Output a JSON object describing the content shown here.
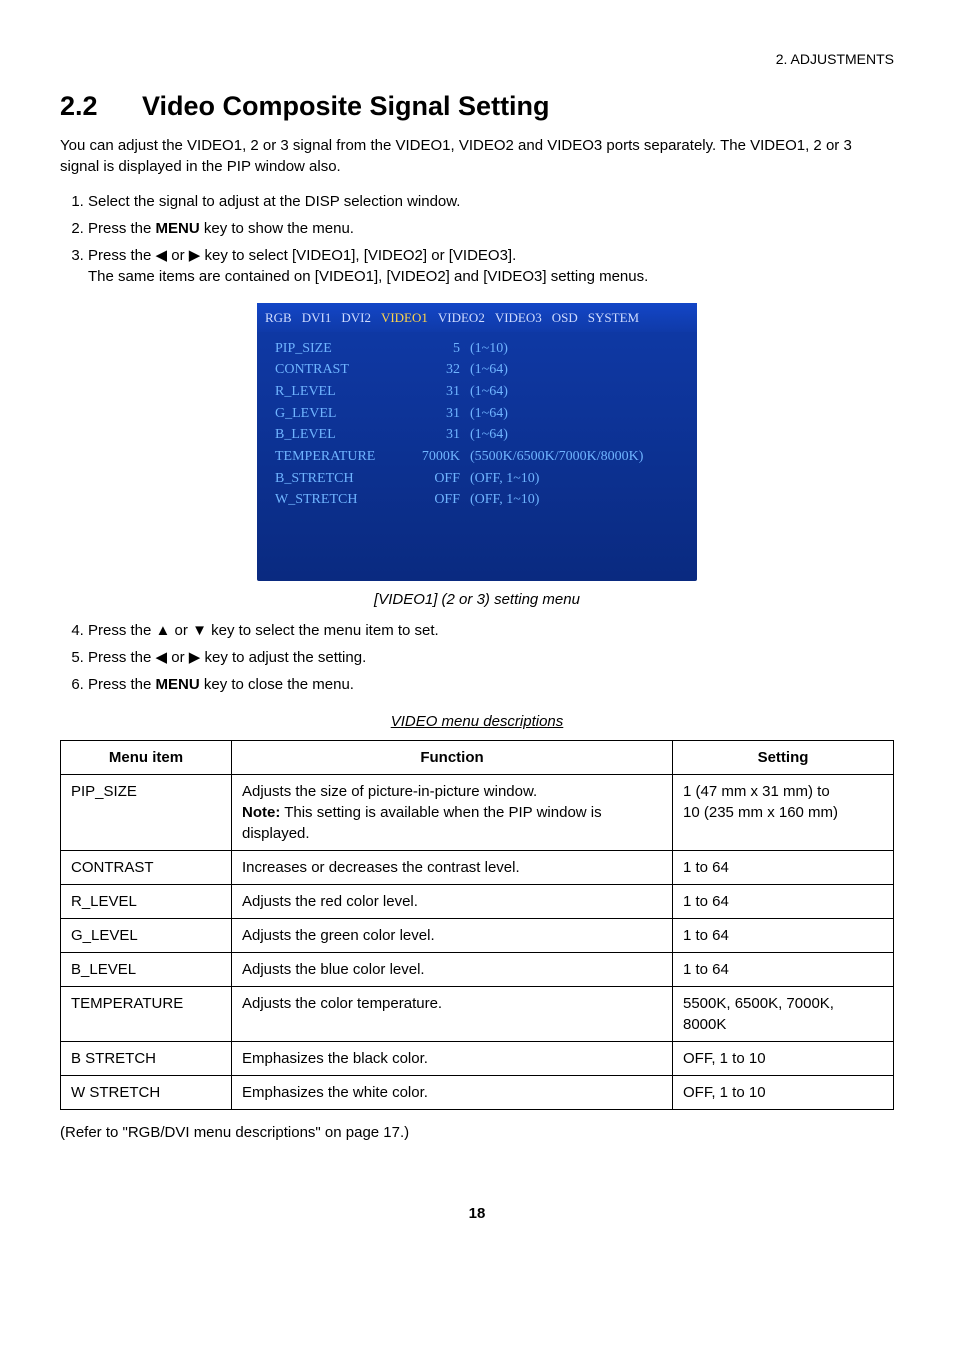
{
  "header": {
    "section_label": "2.  ADJUSTMENTS"
  },
  "title": {
    "number": "2.2",
    "text": "Video Composite Signal Setting"
  },
  "intro": "You can adjust the VIDEO1, 2 or 3 signal from the VIDEO1, VIDEO2 and VIDEO3 ports separately. The VIDEO1, 2 or 3 signal is displayed in the PIP window also.",
  "steps_a": [
    "Select the signal to adjust at the DISP selection window.",
    "Press the MENU key to show the menu.",
    "Press the ◀ or ▶ key to select [VIDEO1], [VIDEO2] or [VIDEO3]. The same items are contained on [VIDEO1], [VIDEO2] and [VIDEO3] setting menus."
  ],
  "menu_screen": {
    "tabs": [
      "RGB",
      "DVI1",
      "DVI2",
      "VIDEO1",
      "VIDEO2",
      "VIDEO3",
      "OSD",
      "SYSTEM"
    ],
    "active_tab_index": 3,
    "rows": [
      {
        "k": "PIP_SIZE",
        "v": "5",
        "r": "(1~10)"
      },
      {
        "k": "CONTRAST",
        "v": "32",
        "r": "(1~64)"
      },
      {
        "k": "R_LEVEL",
        "v": "31",
        "r": "(1~64)"
      },
      {
        "k": "G_LEVEL",
        "v": "31",
        "r": "(1~64)"
      },
      {
        "k": "B_LEVEL",
        "v": "31",
        "r": "(1~64)"
      },
      {
        "k": "TEMPERATURE",
        "v": "7000K",
        "r": "(5500K/6500K/7000K/8000K)"
      },
      {
        "k": "B_STRETCH",
        "v": "OFF",
        "r": "(OFF, 1~10)"
      },
      {
        "k": "W_STRETCH",
        "v": "OFF",
        "r": "(OFF, 1~10)"
      }
    ]
  },
  "caption": "[VIDEO1] (2 or 3) setting menu",
  "steps_b": [
    "Press the ▲ or ▼ key to select the menu item to set.",
    "Press the ◀ or ▶ key to adjust the setting.",
    "Press the MENU key to close the menu."
  ],
  "table_title": "VIDEO menu descriptions",
  "table": {
    "head": [
      "Menu item",
      "Function",
      "Setting"
    ],
    "rows": [
      {
        "m": "PIP_SIZE",
        "f": "Adjusts the size of picture-in-picture window. Note: This setting is available when the PIP window is displayed.",
        "note_bold": "Note:",
        "s": "1 (47 mm x 31 mm) to 10 (235 mm x 160 mm)"
      },
      {
        "m": "CONTRAST",
        "f": "Increases or decreases the contrast level.",
        "s": "1 to 64"
      },
      {
        "m": "R_LEVEL",
        "f": "Adjusts the red color level.",
        "s": "1 to 64"
      },
      {
        "m": "G_LEVEL",
        "f": "Adjusts the green color level.",
        "s": "1 to 64"
      },
      {
        "m": "B_LEVEL",
        "f": "Adjusts the blue color level.",
        "s": "1 to 64"
      },
      {
        "m": "TEMPERATURE",
        "f": "Adjusts the color temperature.",
        "s": "5500K, 6500K, 7000K, 8000K"
      },
      {
        "m": "B STRETCH",
        "f": "Emphasizes the black color.",
        "s": "OFF, 1 to 10"
      },
      {
        "m": "W STRETCH",
        "f": "Emphasizes the white color.",
        "s": "OFF, 1 to 10"
      }
    ]
  },
  "footer_note": "(Refer to \"RGB/DVI menu descriptions\" on page 17.)",
  "page_number": "18"
}
